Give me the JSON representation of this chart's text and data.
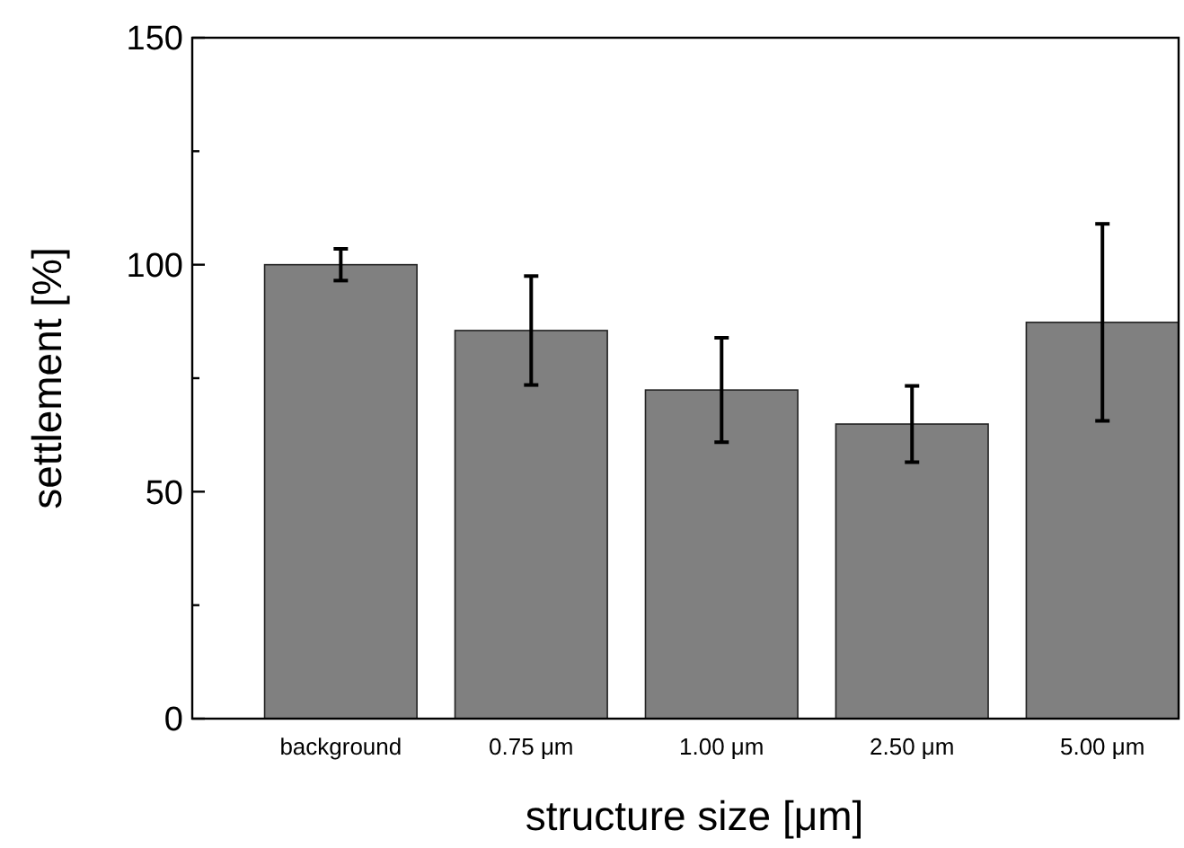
{
  "chart_data": {
    "type": "bar",
    "xlabel": "structure size [μm]",
    "ylabel": "settlement [%]",
    "categories": [
      "background",
      "0.75 μm",
      "1.00 μm",
      "2.50 μm",
      "5.00 μm"
    ],
    "values": [
      100,
      85.5,
      72.4,
      64.9,
      87.3
    ],
    "errors": [
      3.5,
      12,
      11.5,
      8.4,
      21.7
    ],
    "color": "#808080",
    "ylim": [
      0,
      150
    ],
    "yticks": [
      0,
      {
        "value": 25,
        "label": null
      },
      50,
      {
        "value": 75,
        "label": null
      },
      100,
      {
        "value": 125,
        "label": null
      },
      150
    ],
    "grid": false
  }
}
